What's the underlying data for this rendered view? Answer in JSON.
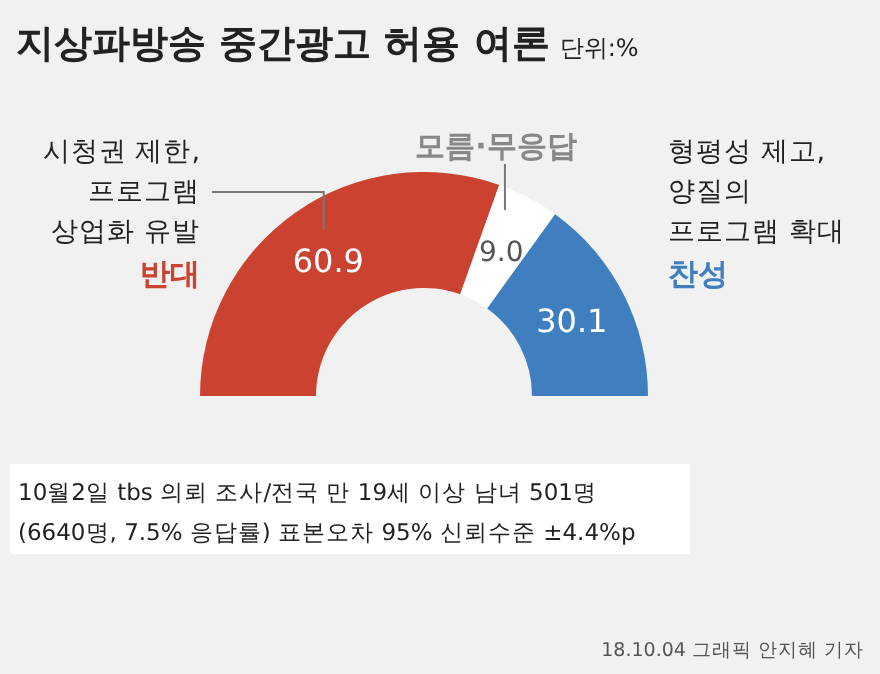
{
  "chart_data": {
    "type": "donut",
    "title": "지상파방송 중간광고 허용 여론",
    "subtitle": "단위:%",
    "categories": [
      "반대",
      "모름·무응답",
      "찬성"
    ],
    "values": [
      60.9,
      9.0,
      30.1
    ],
    "colors": [
      "#cb4330",
      "#ffffff",
      "#3f7fc0"
    ],
    "value_labels": [
      "60.9",
      "9.0",
      "30.1"
    ],
    "annotations": [
      "시청권 제한,\n프로그램\n상업화 유발",
      "형평성 제고,\n양질의\n프로그램 확대",
      "10월2일 tbs 의뢰 조사/전국 만 19세 이상 남녀 501명\n(6640명, 7.5% 응답률) 표본오차 95% 신뢰수준 ±4.4%p",
      "18.10.04 그래픽 안지혜 기자"
    ]
  }
}
